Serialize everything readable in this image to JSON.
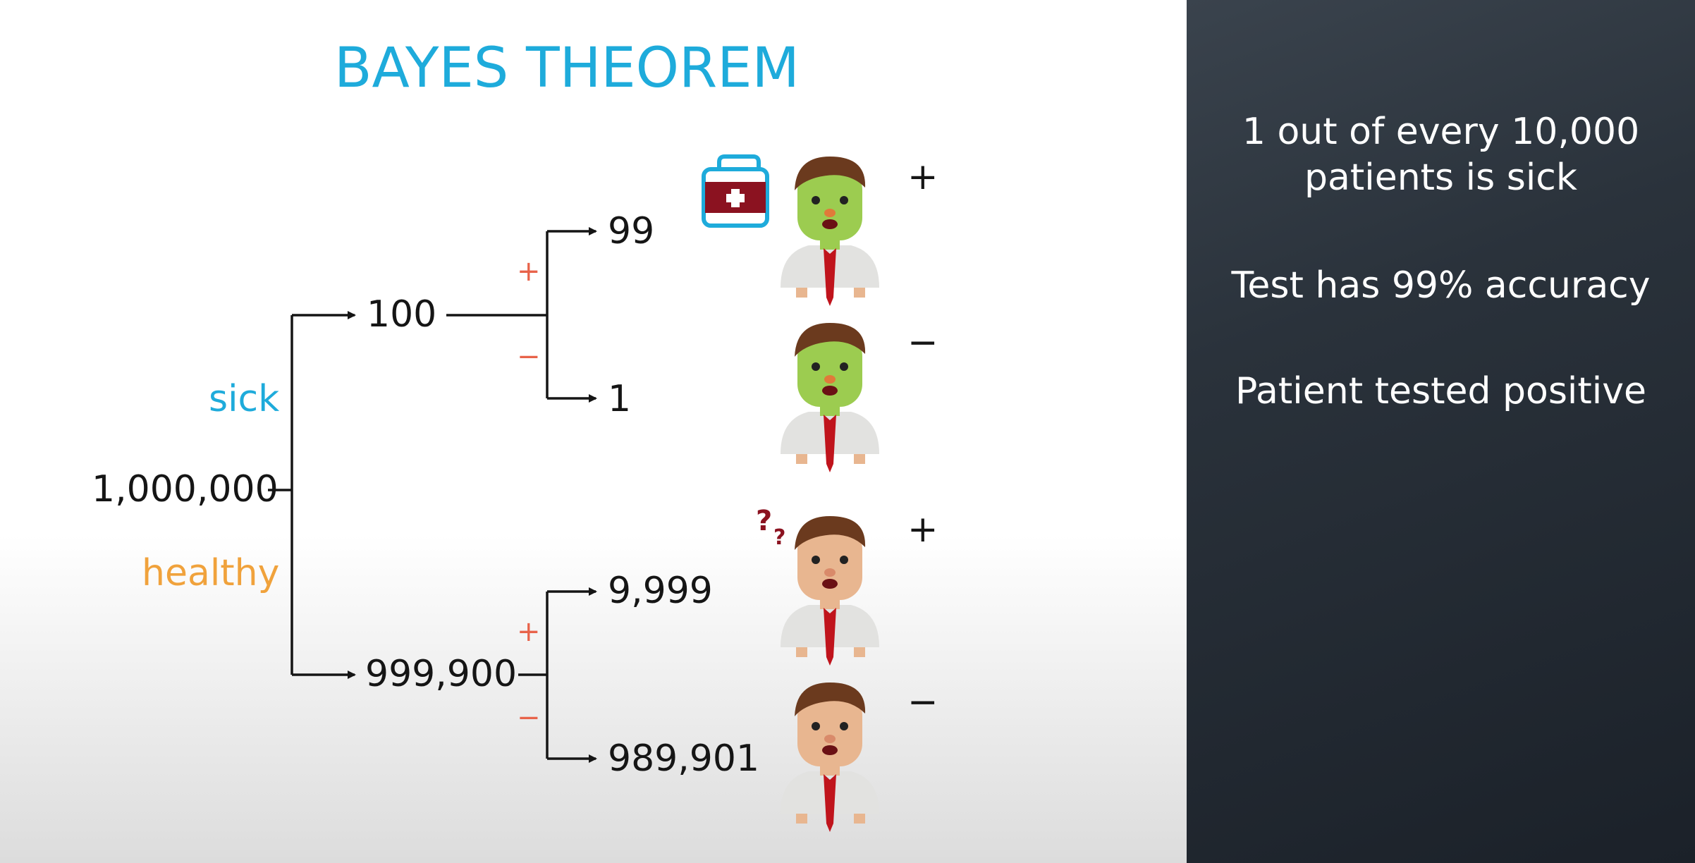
{
  "title": "BAYES THEOREM",
  "root": {
    "value": "1,000,000"
  },
  "branches": {
    "sick_label": "sick",
    "healthy_label": "healthy",
    "sick_total": "100",
    "healthy_total": "999,900"
  },
  "leaves": {
    "sick_positive": "99",
    "sick_negative": "1",
    "healthy_positive": "9,999",
    "healthy_negative": "989,901"
  },
  "test_signs": {
    "plus": "+",
    "minus": "−"
  },
  "figures": [
    {
      "name": "sick-patient-positive",
      "skin": "#9ccc50",
      "result": "+"
    },
    {
      "name": "sick-patient-negative",
      "skin": "#9ccc50",
      "result": "−"
    },
    {
      "name": "healthy-patient-positive",
      "skin": "#e8b690",
      "result": "+"
    },
    {
      "name": "healthy-patient-negative",
      "skin": "#e8b690",
      "result": "−"
    }
  ],
  "panel": {
    "line1": "1 out of every 10,000",
    "line2": "patients is sick",
    "line3": "Test has 99% accuracy",
    "line4": "Patient tested positive"
  },
  "colors": {
    "title": "#1eabdb",
    "sick": "#1eabdb",
    "healthy": "#f0a23c",
    "sign": "#e8634a",
    "tie": "#c0141c"
  }
}
